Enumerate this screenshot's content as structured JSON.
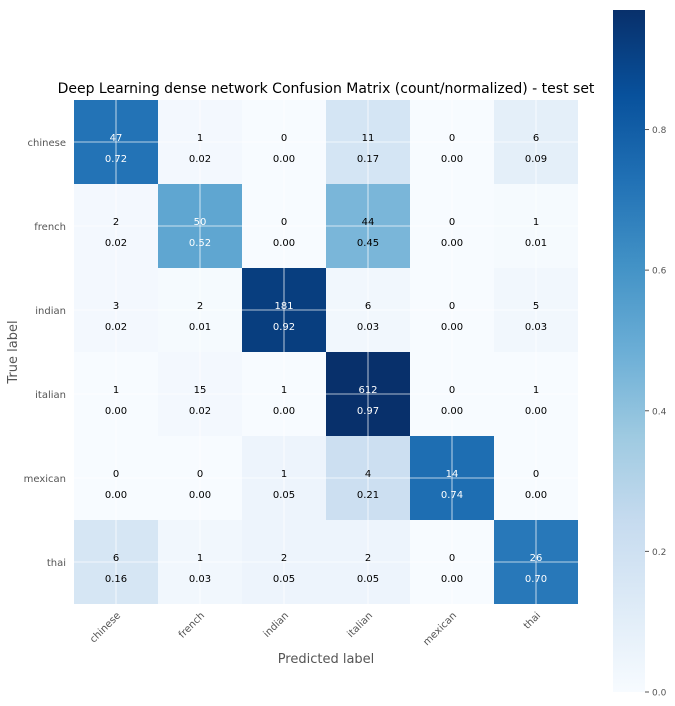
{
  "chart_data": {
    "type": "heatmap",
    "title": "Deep Learning dense network Confusion Matrix (count/normalized) - test set",
    "xlabel": "Predicted label",
    "ylabel": "True label",
    "x_categories": [
      "chinese",
      "french",
      "indian",
      "italian",
      "mexican",
      "thai"
    ],
    "y_categories": [
      "chinese",
      "french",
      "indian",
      "italian",
      "mexican",
      "thai"
    ],
    "counts": [
      [
        47,
        1,
        0,
        11,
        0,
        6
      ],
      [
        2,
        50,
        0,
        44,
        0,
        1
      ],
      [
        3,
        2,
        181,
        6,
        0,
        5
      ],
      [
        1,
        15,
        1,
        612,
        0,
        1
      ],
      [
        0,
        0,
        1,
        4,
        14,
        0
      ],
      [
        6,
        1,
        2,
        2,
        0,
        26
      ]
    ],
    "normalized": [
      [
        "0.72",
        "0.02",
        "0.00",
        "0.17",
        "0.00",
        "0.09"
      ],
      [
        "0.02",
        "0.52",
        "0.00",
        "0.45",
        "0.00",
        "0.01"
      ],
      [
        "0.02",
        "0.01",
        "0.92",
        "0.03",
        "0.00",
        "0.03"
      ],
      [
        "0.00",
        "0.02",
        "0.00",
        "0.97",
        "0.00",
        "0.00"
      ],
      [
        "0.00",
        "0.00",
        "0.05",
        "0.21",
        "0.74",
        "0.00"
      ],
      [
        "0.16",
        "0.03",
        "0.05",
        "0.05",
        "0.00",
        "0.70"
      ]
    ],
    "colorbar": {
      "colormap": "Blues",
      "range": [
        0,
        0.97
      ],
      "ticks": [
        0.0,
        0.2,
        0.4,
        0.6,
        0.8
      ],
      "tick_labels": [
        "0.0",
        "0.2",
        "0.4",
        "0.6",
        "0.8"
      ]
    },
    "grid": true
  }
}
